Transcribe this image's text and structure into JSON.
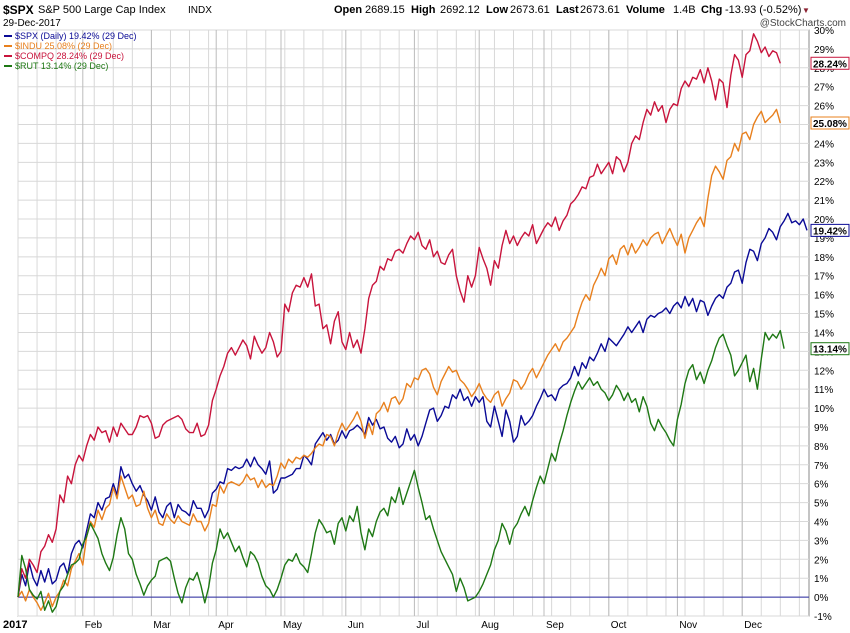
{
  "header": {
    "symbol": "$SPX",
    "name": "S&P 500 Large Cap Index",
    "exchange": "INDX",
    "date": "29-Dec-2017",
    "open_label": "Open",
    "open": "2689.15",
    "high_label": "High",
    "high": "2692.12",
    "low_label": "Low",
    "low": "2673.61",
    "last_label": "Last",
    "last": "2673.61",
    "volume_label": "Volume",
    "volume": "1.4B",
    "chg_label": "Chg",
    "chg": "-13.93 (-0.52%)",
    "chg_arrow": "▼",
    "watermark": "@StockCharts.com"
  },
  "chart_data": {
    "type": "line",
    "year_label": "2017",
    "x_labels": [
      "Feb",
      "Mar",
      "Apr",
      "May",
      "Jun",
      "Jul",
      "Aug",
      "Sep",
      "Oct",
      "Nov",
      "Dec"
    ],
    "y_ticks": [
      "30%",
      "29%",
      "28%",
      "27%",
      "26%",
      "25%",
      "24%",
      "23%",
      "22%",
      "21%",
      "20%",
      "19%",
      "18%",
      "17%",
      "16%",
      "15%",
      "14%",
      "13%",
      "12%",
      "11%",
      "10%",
      "9%",
      "8%",
      "7%",
      "6%",
      "5%",
      "4%",
      "3%",
      "2%",
      "1%",
      "0%",
      "-1%"
    ],
    "ylim": [
      -1,
      30
    ],
    "grid": true,
    "legend_position": "top-left",
    "series": [
      {
        "name": "$SPX (Daily) 19.42% (29 Dec)",
        "end_label": "19.42%",
        "color": "#0a0a96",
        "values": [
          0.0,
          1.2,
          0.6,
          1.8,
          1.0,
          0.6,
          1.4,
          0.8,
          1.5,
          0.7,
          0.9,
          1.6,
          1.8,
          1.2,
          2.3,
          2.8,
          3.0,
          2.6,
          3.5,
          4.4,
          4.2,
          5.0,
          4.6,
          5.2,
          5.3,
          6.0,
          5.4,
          6.9,
          6.3,
          6.5,
          6.0,
          5.6,
          5.9,
          5.4,
          5.1,
          4.6,
          5.3,
          4.5,
          4.2,
          4.8,
          5.0,
          4.2,
          4.9,
          4.6,
          4.5,
          4.3,
          5.1,
          4.7,
          4.7,
          4.2,
          4.6,
          5.5,
          5.7,
          6.1,
          6.0,
          6.8,
          6.7,
          6.9,
          6.8,
          6.9,
          7.3,
          6.9,
          7.4,
          7.0,
          6.8,
          6.5,
          7.2,
          5.5,
          5.7,
          6.3,
          6.3,
          6.4,
          6.5,
          6.8,
          6.8,
          7.5,
          7.3,
          7.0,
          8.1,
          8.4,
          8.7,
          8.3,
          8.6,
          8.1,
          8.3,
          8.8,
          8.4,
          8.8,
          8.9,
          9.1,
          8.9,
          8.6,
          9.5,
          9.1,
          9.4,
          8.9,
          9.0,
          8.4,
          8.2,
          8.5,
          7.9,
          8.1,
          8.9,
          8.3,
          8.6,
          8.0,
          8.5,
          9.2,
          9.9,
          10.0,
          9.3,
          9.6,
          10.1,
          10.0,
          10.7,
          10.5,
          11.0,
          10.4,
          10.6,
          10.1,
          10.6,
          10.3,
          10.6,
          9.3,
          9.0,
          10.1,
          9.3,
          8.5,
          9.9,
          9.3,
          8.2,
          8.5,
          9.6,
          9.1,
          9.3,
          9.6,
          10.1,
          10.5,
          11.0,
          10.6,
          10.7,
          10.4,
          11.0,
          11.2,
          11.3,
          11.6,
          12.2,
          11.7,
          12.4,
          12.1,
          12.7,
          12.5,
          12.9,
          13.4,
          13.0,
          13.7,
          13.5,
          13.3,
          13.6,
          13.9,
          14.3,
          14.0,
          14.3,
          14.6,
          14.0,
          14.7,
          14.9,
          14.8,
          15.0,
          15.1,
          15.3,
          15.0,
          15.4,
          15.6,
          15.3,
          15.9,
          15.4,
          15.8,
          15.1,
          15.7,
          15.6,
          14.9,
          15.4,
          15.8,
          16.0,
          15.8,
          16.4,
          16.6,
          17.2,
          17.3,
          16.6,
          17.7,
          18.4,
          18.3,
          17.8,
          18.7,
          19.0,
          19.5,
          19.3,
          18.9,
          19.6,
          19.9,
          20.3,
          19.8,
          19.9,
          19.7,
          20.0,
          19.4
        ]
      },
      {
        "name": "$INDU 25.08% (29 Dec)",
        "end_label": "25.08%",
        "color": "#e8801e",
        "values": [
          0.0,
          0.3,
          -0.2,
          0.4,
          0.0,
          -0.3,
          -0.7,
          -0.3,
          0.2,
          -0.5,
          0.0,
          0.3,
          0.9,
          0.6,
          1.5,
          1.9,
          2.3,
          1.7,
          3.2,
          4.0,
          3.7,
          4.6,
          4.1,
          4.7,
          4.9,
          5.8,
          5.2,
          6.4,
          5.8,
          5.2,
          5.4,
          4.8,
          4.9,
          5.6,
          4.7,
          4.2,
          4.6,
          3.9,
          3.8,
          4.4,
          4.1,
          3.9,
          4.3,
          4.0,
          3.9,
          3.8,
          4.4,
          4.0,
          4.0,
          3.5,
          3.9,
          4.9,
          4.8,
          5.9,
          5.5,
          6.0,
          6.1,
          6.0,
          5.9,
          6.1,
          6.5,
          6.2,
          6.3,
          5.8,
          6.2,
          5.8,
          6.0,
          5.9,
          6.4,
          7.1,
          6.8,
          7.3,
          7.1,
          7.4,
          7.3,
          7.5,
          7.4,
          7.6,
          7.9,
          8.1,
          8.0,
          8.6,
          8.5,
          8.0,
          8.7,
          9.2,
          8.8,
          9.1,
          9.4,
          9.8,
          9.3,
          8.4,
          9.2,
          8.6,
          9.7,
          9.9,
          10.3,
          9.8,
          10.5,
          10.6,
          10.2,
          10.5,
          11.3,
          11.1,
          11.6,
          11.5,
          12.0,
          12.1,
          11.8,
          11.1,
          10.7,
          11.4,
          11.8,
          12.2,
          11.9,
          12.0,
          11.5,
          11.3,
          11.0,
          10.6,
          10.9,
          11.3,
          10.8,
          10.5,
          10.3,
          10.7,
          10.9,
          10.1,
          10.5,
          10.8,
          11.5,
          11.4,
          11.0,
          11.3,
          11.8,
          12.1,
          11.6,
          12.0,
          12.4,
          12.8,
          13.1,
          13.4,
          13.0,
          13.5,
          13.7,
          14.0,
          14.3,
          15.0,
          15.6,
          16.0,
          15.7,
          16.5,
          16.9,
          17.4,
          17.0,
          17.9,
          18.1,
          17.6,
          18.4,
          18.6,
          18.1,
          18.7,
          18.2,
          18.5,
          18.9,
          18.6,
          19.0,
          19.2,
          19.3,
          18.7,
          19.1,
          19.5,
          19.0,
          18.6,
          19.2,
          18.2,
          19.0,
          19.4,
          19.8,
          20.1,
          19.6,
          21.1,
          22.3,
          22.8,
          22.5,
          22.1,
          23.1,
          23.3,
          24.0,
          23.6,
          24.5,
          24.6,
          24.2,
          25.0,
          25.4,
          25.7,
          25.1,
          25.3,
          25.5,
          25.8,
          25.08
        ]
      },
      {
        "name": "$COMPQ 28.24% (29 Dec)",
        "end_label": "28.24%",
        "color": "#c8143c",
        "values": [
          0.0,
          1.5,
          1.0,
          2.0,
          1.7,
          1.3,
          2.4,
          2.7,
          3.3,
          2.9,
          3.6,
          5.4,
          5.0,
          6.4,
          6.0,
          7.0,
          7.5,
          7.2,
          8.0,
          8.6,
          8.3,
          9.0,
          8.7,
          8.8,
          8.2,
          9.0,
          8.5,
          9.2,
          8.9,
          8.6,
          8.6,
          9.0,
          9.6,
          9.5,
          9.6,
          9.2,
          8.4,
          8.5,
          9.1,
          9.3,
          9.4,
          9.5,
          9.6,
          9.4,
          8.9,
          8.7,
          8.7,
          9.2,
          8.5,
          8.6,
          9.1,
          10.4,
          11.0,
          11.7,
          12.2,
          12.9,
          13.2,
          12.8,
          13.2,
          13.6,
          13.3,
          12.6,
          13.8,
          13.3,
          12.9,
          13.2,
          14.0,
          13.5,
          12.7,
          13.0,
          15.5,
          15.1,
          16.1,
          16.5,
          16.4,
          16.9,
          16.4,
          17.1,
          15.4,
          15.5,
          14.2,
          14.4,
          13.4,
          14.6,
          15.1,
          13.5,
          13.1,
          14.0,
          13.2,
          13.6,
          12.9,
          14.2,
          15.8,
          16.5,
          16.7,
          17.5,
          17.3,
          17.9,
          17.8,
          18.3,
          18.4,
          18.2,
          18.7,
          19.1,
          18.9,
          19.3,
          18.6,
          18.4,
          18.9,
          18.0,
          18.3,
          17.7,
          17.6,
          18.1,
          18.4,
          17.0,
          16.2,
          15.6,
          17.0,
          16.4,
          17.0,
          18.5,
          17.9,
          17.4,
          16.5,
          17.8,
          17.4,
          18.6,
          19.4,
          18.7,
          19.1,
          18.6,
          19.0,
          19.3,
          19.1,
          19.7,
          18.7,
          19.1,
          19.5,
          19.8,
          19.6,
          20.1,
          19.4,
          19.9,
          20.2,
          20.8,
          21.0,
          21.3,
          21.7,
          21.6,
          22.2,
          22.3,
          22.9,
          22.4,
          22.7,
          23.0,
          22.4,
          23.3,
          23.1,
          22.5,
          23.0,
          24.0,
          24.4,
          24.2,
          25.1,
          25.8,
          25.5,
          26.2,
          25.7,
          26.0,
          25.1,
          25.8,
          26.1,
          26.0,
          26.9,
          27.3,
          27.0,
          27.5,
          27.4,
          27.9,
          27.2,
          28.0,
          27.3,
          26.3,
          27.4,
          27.2,
          25.9,
          27.6,
          28.7,
          28.4,
          27.5,
          28.7,
          28.9,
          29.8,
          29.4,
          28.8,
          29.1,
          28.6,
          28.9,
          28.8,
          28.24
        ]
      },
      {
        "name": "$RUT 13.14% (29 Dec)",
        "end_label": "13.14%",
        "color": "#1e7814",
        "values": [
          0.0,
          2.2,
          1.5,
          0.4,
          0.1,
          -0.1,
          0.3,
          -0.7,
          -0.2,
          -0.8,
          -0.5,
          0.3,
          0.6,
          1.2,
          1.7,
          1.8,
          2.0,
          2.8,
          3.2,
          3.9,
          3.5,
          3.1,
          2.3,
          1.8,
          1.4,
          2.1,
          3.3,
          4.2,
          3.6,
          2.3,
          2.0,
          1.2,
          0.7,
          0.1,
          0.6,
          0.9,
          1.1,
          1.9,
          2.0,
          2.1,
          1.9,
          1.0,
          0.2,
          -0.3,
          0.5,
          1.0,
          0.9,
          1.3,
          0.6,
          -0.3,
          0.5,
          1.8,
          2.5,
          3.6,
          3.1,
          3.4,
          2.9,
          2.4,
          2.7,
          2.1,
          1.6,
          2.4,
          2.2,
          1.8,
          1.1,
          0.6,
          0.4,
          0.0,
          0.4,
          1.0,
          1.7,
          2.0,
          1.9,
          2.3,
          1.8,
          1.6,
          1.3,
          2.3,
          3.4,
          4.1,
          3.8,
          3.4,
          3.5,
          2.8,
          3.9,
          4.2,
          3.5,
          4.3,
          4.0,
          4.8,
          3.4,
          2.5,
          3.6,
          3.2,
          4.0,
          4.5,
          4.7,
          4.3,
          5.3,
          5.0,
          5.8,
          4.9,
          5.5,
          6.1,
          6.7,
          5.8,
          5.0,
          4.1,
          4.3,
          3.6,
          3.0,
          2.4,
          2.0,
          1.6,
          1.2,
          0.3,
          1.0,
          0.5,
          -0.2,
          -0.1,
          0.0,
          0.3,
          0.7,
          1.2,
          1.7,
          2.5,
          3.0,
          3.9,
          3.5,
          2.8,
          3.6,
          3.9,
          4.4,
          4.8,
          4.3,
          5.1,
          5.8,
          6.4,
          6.0,
          6.8,
          7.6,
          7.2,
          8.1,
          8.8,
          9.6,
          10.3,
          10.9,
          11.4,
          11.0,
          11.3,
          11.6,
          11.2,
          11.4,
          11.0,
          10.8,
          10.4,
          10.7,
          11.2,
          10.9,
          10.4,
          10.8,
          10.3,
          10.5,
          9.8,
          10.6,
          10.1,
          9.2,
          8.8,
          9.4,
          9.0,
          8.7,
          8.3,
          8.0,
          9.4,
          10.2,
          11.3,
          12.0,
          12.3,
          11.5,
          11.9,
          11.3,
          12.0,
          12.5,
          13.2,
          13.7,
          13.9,
          13.3,
          12.8,
          11.7,
          12.0,
          12.4,
          12.8,
          11.4,
          12.1,
          11.0,
          12.6,
          14.0,
          13.6,
          13.9,
          13.7,
          14.1,
          13.14
        ]
      }
    ]
  }
}
